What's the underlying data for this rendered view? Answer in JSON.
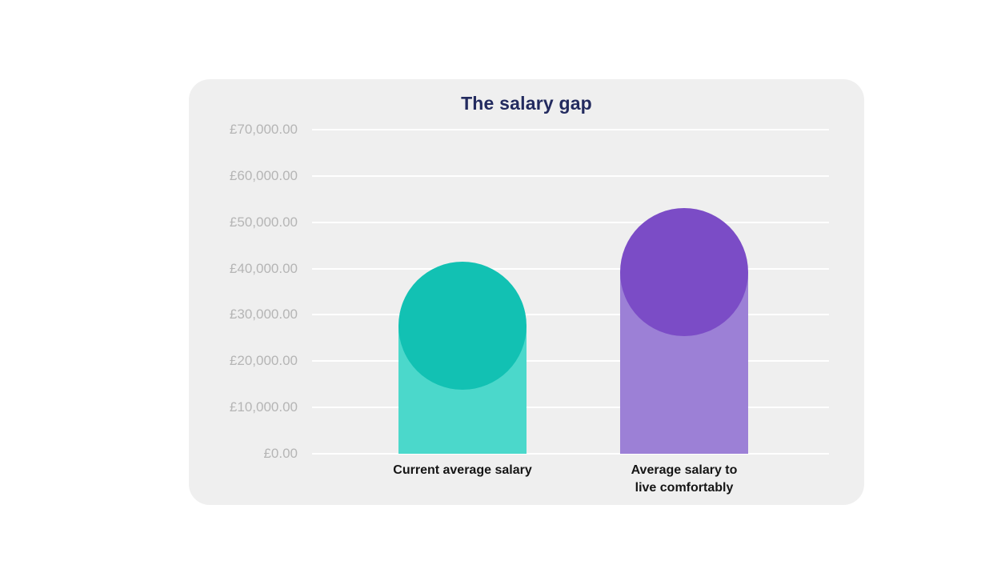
{
  "colors": {
    "page_bg": "#ffffff",
    "card_bg": "#efefef",
    "grid_line": "#ffffff",
    "title": "#232b5f",
    "tick_label": "#b5b5b5",
    "category_label": "#151515"
  },
  "chart_data": {
    "type": "bar",
    "title": "The salary gap",
    "categories": [
      "Current average salary",
      "Average salary to\nlive comfortably"
    ],
    "values": [
      41500,
      53000
    ],
    "series": [
      {
        "name": "Current average salary",
        "value": 41500,
        "body_color": "#4bd8cb",
        "cap_color": "#12c1b3"
      },
      {
        "name": "Average salary to live comfortably",
        "value": 53000,
        "body_color": "#9c80d6",
        "cap_color": "#7b4cc6"
      }
    ],
    "y_ticks": [
      {
        "value": 70000,
        "label": "£70,000.00"
      },
      {
        "value": 60000,
        "label": "£60,000.00"
      },
      {
        "value": 50000,
        "label": "£50,000.00"
      },
      {
        "value": 40000,
        "label": "£40,000.00"
      },
      {
        "value": 30000,
        "label": "£30,000.00"
      },
      {
        "value": 20000,
        "label": "£20,000.00"
      },
      {
        "value": 10000,
        "label": "£10,000.00"
      },
      {
        "value": 0,
        "label": "£0.00"
      }
    ],
    "ylim": [
      0,
      70000
    ],
    "xlabel": "",
    "ylabel": "",
    "grid": true,
    "legend": false
  }
}
